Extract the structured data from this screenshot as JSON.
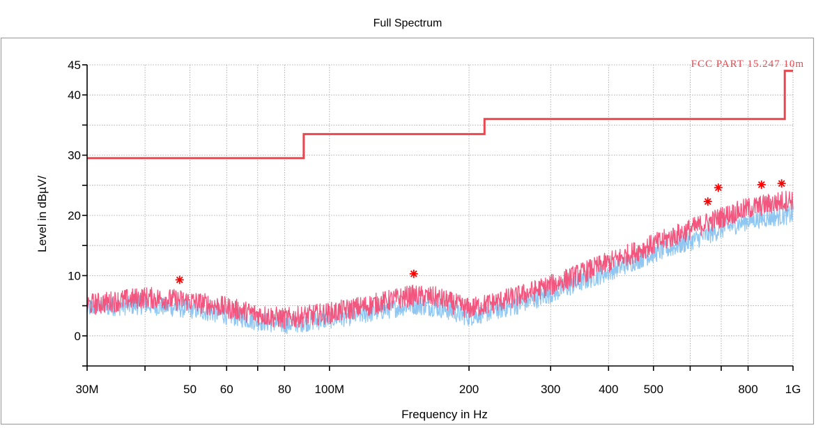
{
  "chart_data": {
    "type": "line",
    "title": "Full Spectrum",
    "xlabel": "Frequency in Hz",
    "ylabel": "Level in dBµV/",
    "x_scale": "log",
    "xlim": [
      30000000,
      1000000000
    ],
    "ylim": [
      -5,
      45
    ],
    "grid": true,
    "x_ticks": [
      {
        "value": 30000000,
        "label": "30M"
      },
      {
        "value": 40000000,
        "label": ""
      },
      {
        "value": 50000000,
        "label": "50"
      },
      {
        "value": 60000000,
        "label": "60"
      },
      {
        "value": 70000000,
        "label": ""
      },
      {
        "value": 80000000,
        "label": "80"
      },
      {
        "value": 100000000,
        "label": "100M"
      },
      {
        "value": 200000000,
        "label": "200"
      },
      {
        "value": 300000000,
        "label": "300"
      },
      {
        "value": 400000000,
        "label": "400"
      },
      {
        "value": 500000000,
        "label": "500"
      },
      {
        "value": 600000000,
        "label": ""
      },
      {
        "value": 700000000,
        "label": ""
      },
      {
        "value": 800000000,
        "label": "800"
      },
      {
        "value": 1000000000,
        "label": "1G"
      }
    ],
    "y_ticks": [
      {
        "value": -5,
        "label": ""
      },
      {
        "value": 0,
        "label": "0"
      },
      {
        "value": 5,
        "label": ""
      },
      {
        "value": 10,
        "label": "10"
      },
      {
        "value": 15,
        "label": ""
      },
      {
        "value": 20,
        "label": "20"
      },
      {
        "value": 25,
        "label": ""
      },
      {
        "value": 30,
        "label": "30"
      },
      {
        "value": 35,
        "label": ""
      },
      {
        "value": 40,
        "label": "40"
      },
      {
        "value": 45,
        "label": "45"
      }
    ],
    "limit_line": {
      "name": "FCC PART 15.247 10m",
      "color": "#e8474f",
      "points": [
        {
          "x": 30000000,
          "y": 29.5
        },
        {
          "x": 88000000,
          "y": 29.5
        },
        {
          "x": 88000000,
          "y": 33.5
        },
        {
          "x": 216000000,
          "y": 33.5
        },
        {
          "x": 216000000,
          "y": 36.0
        },
        {
          "x": 960000000,
          "y": 36.0
        },
        {
          "x": 960000000,
          "y": 44.0
        },
        {
          "x": 1000000000,
          "y": 44.0
        }
      ]
    },
    "series": [
      {
        "color": "#8fc7f2",
        "envelope": [
          {
            "x": 30000000,
            "y": 4.5
          },
          {
            "x": 40000000,
            "y": 5.0
          },
          {
            "x": 50000000,
            "y": 4.3
          },
          {
            "x": 60000000,
            "y": 3.3
          },
          {
            "x": 70000000,
            "y": 2.3
          },
          {
            "x": 80000000,
            "y": 1.7
          },
          {
            "x": 100000000,
            "y": 2.6
          },
          {
            "x": 120000000,
            "y": 3.5
          },
          {
            "x": 150000000,
            "y": 5.0
          },
          {
            "x": 170000000,
            "y": 4.6
          },
          {
            "x": 200000000,
            "y": 3.0
          },
          {
            "x": 250000000,
            "y": 4.8
          },
          {
            "x": 300000000,
            "y": 6.8
          },
          {
            "x": 400000000,
            "y": 10.5
          },
          {
            "x": 500000000,
            "y": 13.5
          },
          {
            "x": 600000000,
            "y": 15.5
          },
          {
            "x": 700000000,
            "y": 17.5
          },
          {
            "x": 800000000,
            "y": 19.0
          },
          {
            "x": 1000000000,
            "y": 20.0
          }
        ]
      },
      {
        "color": "#f2557e",
        "envelope": [
          {
            "x": 30000000,
            "y": 5.0
          },
          {
            "x": 40000000,
            "y": 6.2
          },
          {
            "x": 50000000,
            "y": 5.6
          },
          {
            "x": 60000000,
            "y": 4.5
          },
          {
            "x": 70000000,
            "y": 3.4
          },
          {
            "x": 80000000,
            "y": 2.7
          },
          {
            "x": 100000000,
            "y": 3.6
          },
          {
            "x": 120000000,
            "y": 4.8
          },
          {
            "x": 150000000,
            "y": 6.5
          },
          {
            "x": 170000000,
            "y": 6.2
          },
          {
            "x": 200000000,
            "y": 4.3
          },
          {
            "x": 250000000,
            "y": 6.2
          },
          {
            "x": 300000000,
            "y": 8.2
          },
          {
            "x": 400000000,
            "y": 12.0
          },
          {
            "x": 500000000,
            "y": 15.0
          },
          {
            "x": 600000000,
            "y": 17.5
          },
          {
            "x": 700000000,
            "y": 19.5
          },
          {
            "x": 800000000,
            "y": 21.0
          },
          {
            "x": 1000000000,
            "y": 22.5
          }
        ]
      }
    ],
    "markers": {
      "color": "#ff0000",
      "symbol": "asterisk",
      "points": [
        {
          "x": 47500000,
          "y": 9.3
        },
        {
          "x": 152000000,
          "y": 10.3
        },
        {
          "x": 655000000,
          "y": 22.3
        },
        {
          "x": 690000000,
          "y": 24.6
        },
        {
          "x": 855000000,
          "y": 25.1
        },
        {
          "x": 945000000,
          "y": 25.3
        }
      ]
    }
  }
}
